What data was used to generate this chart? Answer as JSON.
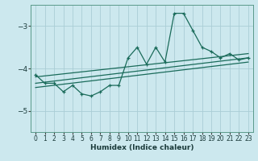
{
  "xlabel": "Humidex (Indice chaleur)",
  "bg_color": "#cce8ee",
  "grid_color": "#aacdd5",
  "line_color": "#1a6b5a",
  "xlim": [
    -0.5,
    23.5
  ],
  "ylim": [
    -5.5,
    -2.5
  ],
  "yticks": [
    -5,
    -4,
    -3
  ],
  "xticks": [
    0,
    1,
    2,
    3,
    4,
    5,
    6,
    7,
    8,
    9,
    10,
    11,
    12,
    13,
    14,
    15,
    16,
    17,
    18,
    19,
    20,
    21,
    22,
    23
  ],
  "series1_x": [
    0,
    1,
    2,
    3,
    4,
    5,
    6,
    7,
    8,
    9,
    10,
    11,
    12,
    13,
    14,
    15,
    16,
    17,
    18,
    19,
    20,
    21,
    22,
    23
  ],
  "series1_y": [
    -4.15,
    -4.35,
    -4.35,
    -4.55,
    -4.4,
    -4.6,
    -4.65,
    -4.55,
    -4.4,
    -4.4,
    -3.75,
    -3.5,
    -3.9,
    -3.5,
    -3.85,
    -2.7,
    -2.7,
    -3.1,
    -3.5,
    -3.6,
    -3.75,
    -3.65,
    -3.8,
    -3.75
  ],
  "series2_x": [
    0,
    23
  ],
  "series2_y": [
    -4.2,
    -3.65
  ],
  "series3_x": [
    0,
    23
  ],
  "series3_y": [
    -4.35,
    -3.75
  ],
  "series4_x": [
    0,
    23
  ],
  "series4_y": [
    -4.45,
    -3.85
  ]
}
